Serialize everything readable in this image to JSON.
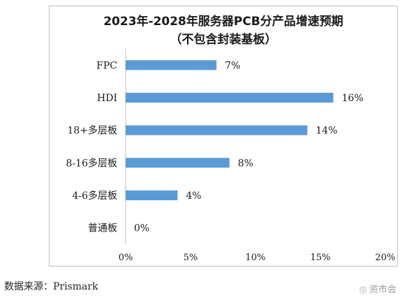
{
  "chart_data": {
    "type": "bar",
    "orientation": "horizontal",
    "title": "2023年-2028年服务器PCB分产品增速预期",
    "subtitle": "（不包含封装基板）",
    "categories": [
      "FPC",
      "HDI",
      "18+多层板",
      "8-16多层板",
      "4-6多层板",
      "普通板"
    ],
    "values": [
      7,
      16,
      14,
      8,
      4,
      0
    ],
    "data_labels": [
      "7%",
      "16%",
      "14%",
      "8%",
      "4%",
      "0%"
    ],
    "x_ticks": [
      "0%",
      "5%",
      "10%",
      "15%",
      "20%"
    ],
    "xlim": [
      0,
      20
    ],
    "bar_color": "#5b9bd5",
    "grid": false,
    "legend": "none"
  },
  "source": "数据来源：Prismark",
  "watermark": "资市会"
}
